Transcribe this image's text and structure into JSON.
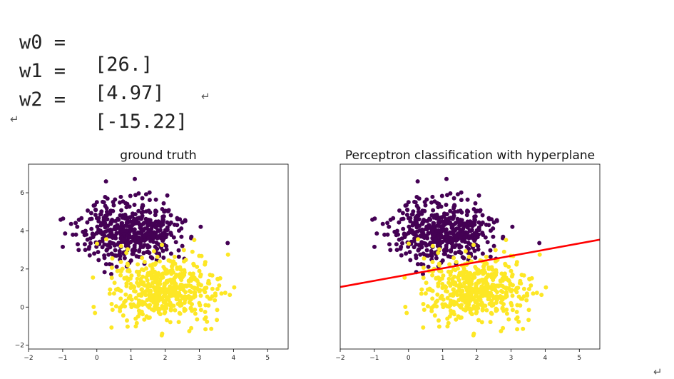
{
  "code": {
    "lines": [
      {
        "label": "w0 =",
        "value": "[26.]"
      },
      {
        "label": "w1 =",
        "value": "[4.97]"
      },
      {
        "label": "w2 =",
        "value": "[-15.22]"
      }
    ],
    "para_mark": "↵"
  },
  "colors": {
    "class0": "#440154",
    "class1": "#fde725",
    "hyperplane": "#ff0000",
    "axes": "#000000"
  },
  "chart_data": [
    {
      "type": "scatter",
      "title": "ground truth",
      "xlim": [
        -2,
        5.6
      ],
      "ylim": [
        -2.2,
        7.5
      ],
      "xticks": [
        -2,
        -1,
        0,
        1,
        2,
        3,
        4,
        5
      ],
      "yticks": [
        -2,
        0,
        2,
        4,
        6
      ],
      "classes": [
        {
          "color": "#440154",
          "center": [
            1,
            4
          ],
          "std": [
            0.75,
            0.8
          ],
          "count": 500
        },
        {
          "color": "#fde725",
          "center": [
            2,
            1
          ],
          "std": [
            0.8,
            0.85
          ],
          "count": 500
        }
      ]
    },
    {
      "type": "scatter",
      "title": "Perceptron classification with hyperplane",
      "xlim": [
        -2,
        5.6
      ],
      "ylim": [
        -2.2,
        7.5
      ],
      "xticks": [
        -2,
        -1,
        0,
        1,
        2,
        3,
        4,
        5
      ],
      "yticks": [],
      "classes": [
        {
          "color": "#440154",
          "center": [
            1,
            4
          ],
          "std": [
            0.75,
            0.8
          ],
          "count": 500
        },
        {
          "color": "#fde725",
          "center": [
            2,
            1
          ],
          "std": [
            0.8,
            0.85
          ],
          "count": 500
        }
      ],
      "hyperplane": {
        "w0": 26.0,
        "w1": 4.97,
        "w2": -15.22,
        "color": "#ff0000"
      }
    }
  ]
}
